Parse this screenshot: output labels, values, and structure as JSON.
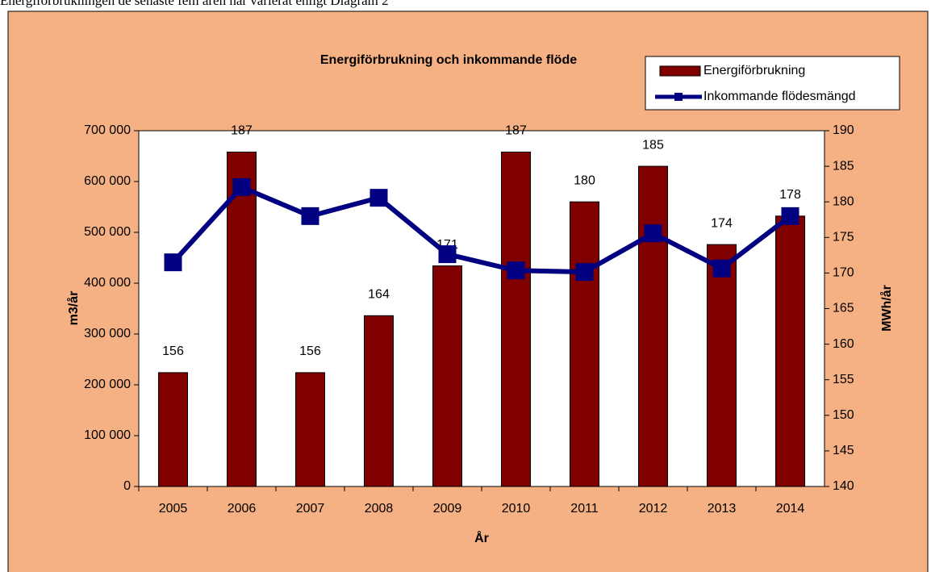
{
  "caption": "Energiförbrukningen de senaste fem åren har varierat enligt Diagram 2",
  "chart_data": {
    "type": "bar-line",
    "title": "Energiförbrukning och inkommande  flöde",
    "x_label": "År",
    "y_label": "m3/år",
    "y2_label": "MWh/år",
    "categories": [
      "2005",
      "2006",
      "2007",
      "2008",
      "2009",
      "2010",
      "2011",
      "2012",
      "2013",
      "2014"
    ],
    "series": [
      {
        "name": "Energiförbrukning",
        "type": "bar",
        "axis": "y2",
        "color": "#800000",
        "values": [
          156,
          187,
          156,
          164,
          171,
          187,
          180,
          185,
          174,
          178
        ]
      },
      {
        "name": "Inkommande flödesmängd",
        "type": "line",
        "axis": "y",
        "color": "#000080",
        "values": [
          441000,
          589000,
          532000,
          568000,
          457000,
          425000,
          422000,
          498000,
          429000,
          532000
        ]
      }
    ],
    "ylim": [
      0,
      700000
    ],
    "yticks": [
      0,
      {
        "value": 100000,
        "label": "100 000"
      },
      {
        "value": 200000,
        "label": "200 000"
      },
      {
        "value": 300000,
        "label": "300 000"
      },
      {
        "value": 400000,
        "label": "400 000"
      },
      {
        "value": 500000,
        "label": "500 000"
      },
      {
        "value": 600000,
        "label": "600 000"
      },
      {
        "value": 700000,
        "label": "700 000"
      }
    ],
    "y2lim": [
      140,
      190
    ],
    "y2ticks": [
      140,
      145,
      150,
      155,
      160,
      165,
      170,
      175,
      180,
      185,
      190
    ],
    "grid": false,
    "legend": "upper right"
  }
}
